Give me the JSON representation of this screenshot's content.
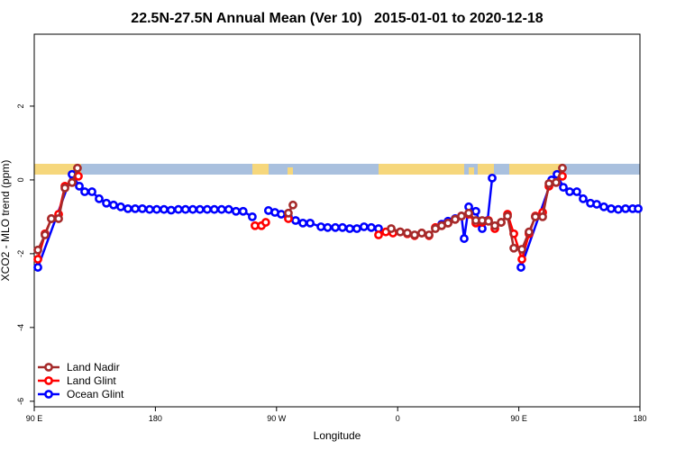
{
  "chart_data": {
    "type": "line",
    "title": "22.5N-27.5N Annual Mean (Ver 10)   2015-01-01 to 2020-12-18",
    "x_label": "Longitude",
    "y_label": "XCO2 - MLO trend (ppm)",
    "xlim": [
      90,
      540
    ],
    "ylim": [
      -6.15,
      3.95
    ],
    "xticks": [
      {
        "value": 90,
        "label": "90 E"
      },
      {
        "value": 180,
        "label": "180"
      },
      {
        "value": 270,
        "label": "90 W"
      },
      {
        "value": 360,
        "label": "0"
      },
      {
        "value": 450,
        "label": "90 E"
      },
      {
        "value": 540,
        "label": "180"
      }
    ],
    "yticks": [
      -6,
      -4,
      -2,
      0,
      2
    ],
    "legend": "bottom-left",
    "series": [
      {
        "name": "Land Nadir",
        "color": "#a52a2a",
        "x": [
          92.7,
          98,
          102.7,
          108.1,
          112.8,
          118.1,
          122.1,
          null,
          278.8,
          282.2,
          null,
          355.2,
          361.9,
          367.2,
          372.6,
          377.9,
          383.3,
          388,
          392.7,
          397.4,
          402.7,
          407.4,
          412.8,
          418.1,
          422.8,
          427.5,
          432.2,
          436.9,
          441.6,
          446.3,
          452.3,
          457.6,
          462.3,
          467.7,
          472.4,
          477.7,
          482.4
        ],
        "values": [
          -1.9,
          -1.49,
          -1.05,
          -1.05,
          -0.22,
          -0.07,
          0.32,
          null,
          -0.9,
          -0.68,
          null,
          -1.32,
          -1.41,
          -1.44,
          -1.49,
          -1.44,
          -1.49,
          -1.32,
          -1.24,
          -1.17,
          -1.07,
          -0.98,
          -0.9,
          -1.1,
          -1.1,
          -1.12,
          -1.24,
          -1.15,
          -0.98,
          -1.85,
          -1.88,
          -1.41,
          -1.0,
          -1.0,
          -0.1,
          -0.07,
          0.32
        ]
      },
      {
        "name": "Land Glint",
        "color": "#ff0000",
        "x": [
          92.7,
          98,
          102.7,
          108.1,
          112.8,
          118.1,
          122.8,
          null,
          254,
          258.8,
          262,
          null,
          278.8,
          null,
          345.8,
          351.2,
          356.5,
          361.9,
          367.2,
          372.6,
          377.9,
          383.3,
          388,
          392.7,
          397.4,
          402.7,
          407.4,
          412.8,
          418.1,
          422.8,
          427.5,
          432.2,
          436.9,
          441.6,
          446.3,
          452.3,
          457.6,
          462.3,
          467.7,
          472.4,
          477.7,
          482.4
        ],
        "values": [
          -2.15,
          -1.46,
          -1.05,
          -0.93,
          -0.17,
          -0.07,
          0.1,
          null,
          -1.24,
          -1.24,
          -1.15,
          null,
          -1.05,
          null,
          -1.49,
          -1.41,
          -1.44,
          -1.41,
          -1.46,
          -1.51,
          -1.44,
          -1.51,
          -1.29,
          -1.24,
          -1.17,
          -1.07,
          -0.98,
          -0.93,
          -1.17,
          -1.15,
          -1.1,
          -1.32,
          -1.15,
          -0.93,
          -1.46,
          -2.15,
          -1.46,
          -0.98,
          -0.88,
          -0.17,
          -0.07,
          0.1
        ]
      },
      {
        "name": "Ocean Glint",
        "color": "#0000ff",
        "x": [
          92.7,
          118.1,
          123.5,
          127.5,
          132.9,
          138.2,
          143.6,
          148.9,
          154.3,
          159.6,
          165,
          170.3,
          175.7,
          181,
          186.4,
          191.7,
          197.1,
          202.4,
          207.8,
          213.1,
          218.5,
          223.8,
          229.2,
          234.5,
          239.9,
          245.2,
          252,
          null,
          264,
          268.8,
          273.5,
          278.8,
          284.2,
          289.6,
          295,
          303,
          308,
          313.7,
          319,
          324.4,
          329.7,
          335,
          340.4,
          345.8,
          null,
          392.7,
          397.4,
          402.7,
          407.4,
          409.4,
          412.8,
          418.1,
          422.8,
          426.8,
          430.2,
          null,
          451.6,
          474.4,
          478.4,
          483.1,
          487.8,
          493.1,
          497.8,
          503.2,
          507.9,
          513.2,
          518.6,
          523.9,
          529.3,
          534.6,
          538.7
        ],
        "values": [
          -2.37,
          0.15,
          -0.17,
          -0.32,
          -0.32,
          -0.51,
          -0.63,
          -0.68,
          -0.73,
          -0.78,
          -0.78,
          -0.78,
          -0.8,
          -0.8,
          -0.8,
          -0.82,
          -0.8,
          -0.8,
          -0.8,
          -0.8,
          -0.8,
          -0.8,
          -0.8,
          -0.8,
          -0.85,
          -0.85,
          -1.0,
          null,
          -0.83,
          -0.88,
          -0.93,
          -1.0,
          -1.1,
          -1.17,
          -1.17,
          -1.27,
          -1.29,
          -1.29,
          -1.29,
          -1.32,
          -1.32,
          -1.27,
          -1.29,
          -1.32,
          null,
          -1.2,
          -1.12,
          -1.05,
          -0.98,
          -1.59,
          -0.73,
          -0.85,
          -1.32,
          -1.1,
          0.05,
          null,
          -2.37,
          0,
          0.15,
          -0.2,
          -0.32,
          -0.32,
          -0.51,
          -0.63,
          -0.66,
          -0.73,
          -0.78,
          -0.8,
          -0.78,
          -0.78,
          -0.78
        ]
      }
    ]
  }
}
